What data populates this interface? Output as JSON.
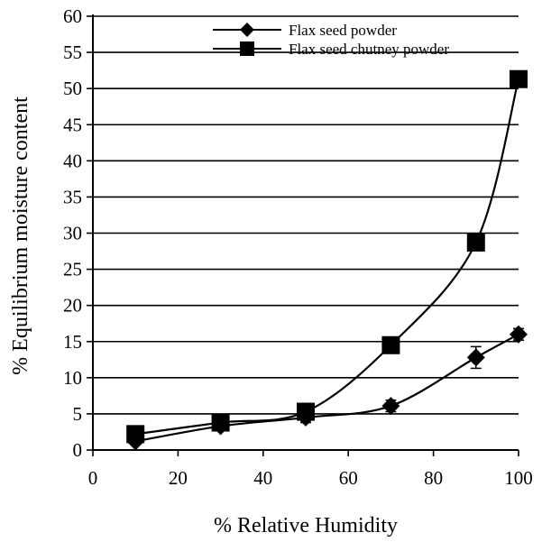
{
  "chart_data": {
    "type": "line",
    "title": "",
    "xlabel": "% Relative Humidity",
    "ylabel": "% Equilibrium moisture content",
    "xlim": [
      0,
      100
    ],
    "ylim": [
      0,
      60
    ],
    "xticks": [
      "0",
      "20",
      "40",
      "60",
      "80",
      "100"
    ],
    "yticks": [
      "0",
      "5",
      "10",
      "15",
      "20",
      "25",
      "30",
      "35",
      "40",
      "45",
      "50",
      "55",
      "60"
    ],
    "grid": "horizontal",
    "legend": "top-center",
    "series": [
      {
        "name": "Flax seed powder",
        "marker": "diamond",
        "x": [
          10,
          30,
          50,
          70,
          90,
          100
        ],
        "y": [
          1.2,
          3.3,
          4.5,
          6.1,
          12.8,
          16.0
        ],
        "error": [
          0.4,
          0.5,
          0.7,
          0.8,
          1.5,
          0.8
        ]
      },
      {
        "name": "Flax seed chutney powder",
        "marker": "square",
        "x": [
          10,
          30,
          50,
          70,
          90,
          100
        ],
        "y": [
          2.2,
          3.8,
          5.3,
          14.5,
          28.7,
          51.3
        ],
        "error": [
          0.3,
          0.4,
          0.4,
          0.5,
          0.7,
          0.8
        ]
      }
    ]
  }
}
